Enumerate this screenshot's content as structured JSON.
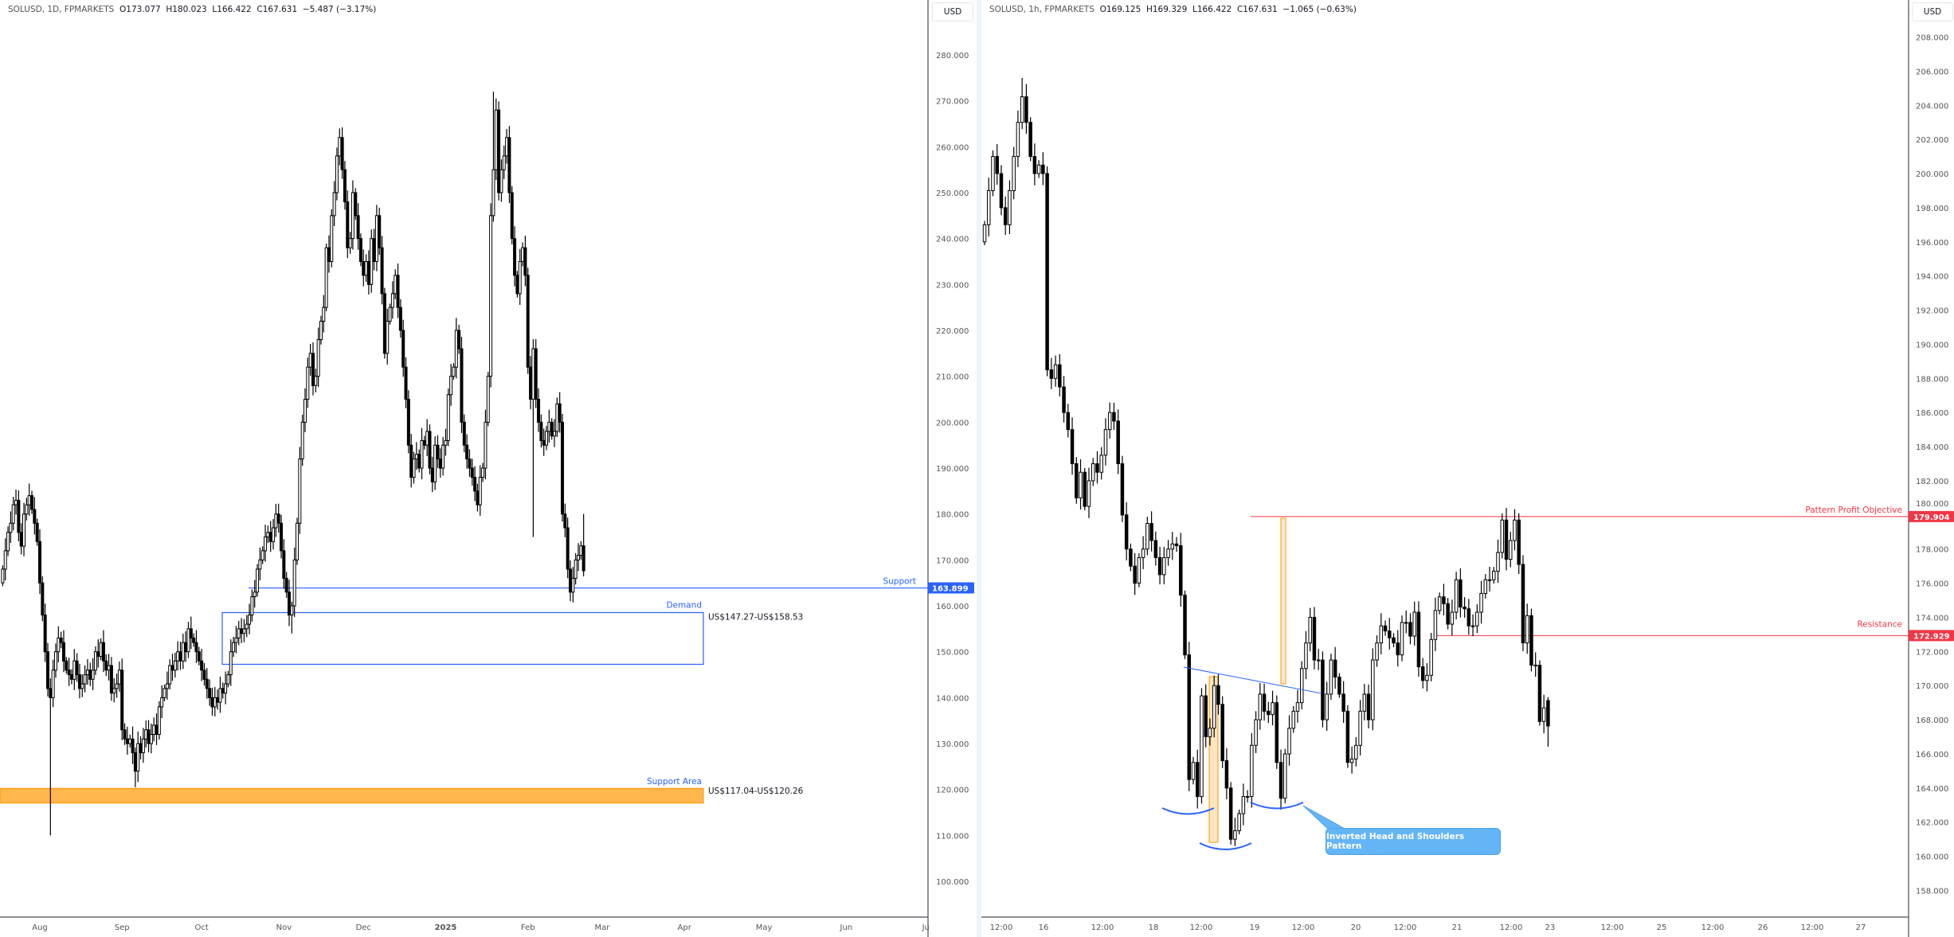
{
  "left_header": {
    "symbol": "SOLUSD, 1D, FPMARKETS",
    "open": "O173.077",
    "high": "H180.023",
    "low": "L166.422",
    "close": "C167.631",
    "change": "−5.487 (−3.17%)"
  },
  "right_header": {
    "symbol": "SOLUSD, 1h, FPMARKETS",
    "open": "O169.125",
    "high": "H169.329",
    "low": "L166.422",
    "close": "C167.631",
    "change": "−1.065 (−0.63%)"
  },
  "currency_label": "USD",
  "colors": {
    "up_body": "#ffffff",
    "down_body": "#000000",
    "support_blue": "#2962ff",
    "resistance_red": "#f23645",
    "support_area_orange": "#ffb74d",
    "callout_blue": "#64b5f6"
  },
  "chart_data": [
    {
      "type": "candlestick",
      "timeframe": "1D",
      "ylim": [
        95,
        285
      ],
      "y_ticks": [
        "100.000",
        "110.000",
        "120.000",
        "130.000",
        "140.000",
        "150.000",
        "160.000",
        "170.000",
        "180.000",
        "190.000",
        "200.000",
        "210.000",
        "220.000",
        "230.000",
        "240.000",
        "250.000",
        "260.000",
        "270.000",
        "280.000"
      ],
      "x_ticks": [
        "Aug",
        "Sep",
        "Oct",
        "Nov",
        "Dec",
        "2025",
        "Feb",
        "Mar",
        "Apr",
        "May",
        "Jun",
        "Ju"
      ],
      "closes": [
        168,
        172,
        176,
        178,
        182,
        183,
        176,
        173,
        180,
        182,
        184,
        181,
        178,
        174,
        165,
        158,
        150,
        142,
        140,
        146,
        150,
        153,
        152,
        148,
        146,
        145,
        144,
        148,
        145,
        142,
        143,
        145,
        146,
        144,
        146,
        150,
        149,
        152,
        148,
        146,
        147,
        141,
        142,
        143,
        146,
        133,
        131,
        130,
        131,
        128,
        124,
        130,
        128,
        131,
        133,
        130,
        132,
        134,
        132,
        138,
        140,
        142,
        143,
        147,
        146,
        148,
        150,
        148,
        152,
        150,
        155,
        153,
        152,
        150,
        148,
        146,
        144,
        142,
        140,
        138,
        140,
        139,
        142,
        141,
        143,
        145,
        150,
        152,
        153,
        155,
        154,
        155,
        156,
        158,
        162,
        163,
        168,
        170,
        172,
        175,
        176,
        174,
        177,
        180,
        178,
        172,
        166,
        163,
        158,
        160,
        170,
        178,
        192,
        200,
        205,
        212,
        215,
        208,
        210,
        218,
        222,
        225,
        238,
        235,
        245,
        250,
        258,
        262,
        255,
        248,
        238,
        240,
        250,
        245,
        240,
        235,
        232,
        235,
        230,
        240,
        235,
        245,
        238,
        228,
        215,
        222,
        225,
        228,
        232,
        225,
        220,
        212,
        205,
        195,
        188,
        192,
        193,
        190,
        196,
        195,
        198,
        190,
        187,
        195,
        192,
        190,
        195,
        196,
        206,
        210,
        212,
        220,
        216,
        200,
        195,
        192,
        190,
        188,
        185,
        182,
        188,
        190,
        200,
        210,
        245,
        255,
        268,
        250,
        255,
        258,
        262,
        250,
        240,
        232,
        228,
        235,
        238,
        232,
        212,
        205,
        216,
        205,
        200,
        196,
        195,
        198,
        200,
        197,
        198,
        204,
        200,
        180,
        177,
        168,
        163,
        166,
        170,
        171,
        173.077,
        167.631
      ],
      "first_open": 165,
      "extremes": [
        {
          "i": 18,
          "low": 110
        },
        {
          "i": 50,
          "low": 120.5
        },
        {
          "i": 109,
          "low": 154
        },
        {
          "i": 127,
          "high": 264
        },
        {
          "i": 185,
          "high": 272
        },
        {
          "i": 200,
          "low": 175
        },
        {
          "i": 214,
          "low": 161
        },
        {
          "i": 219,
          "high": 180.023,
          "low": 166.422
        }
      ],
      "last_price": "163.899",
      "annotations": {
        "support": {
          "label": "Support",
          "price": 163.899,
          "tag": "163.899"
        },
        "demand": {
          "label": "Demand",
          "low": 147.27,
          "high": 158.53,
          "range_text": "US$147.27-US$158.53"
        },
        "support_area": {
          "label": "Support Area",
          "low": 117.04,
          "high": 120.26,
          "range_text": "US$117.04-US$120.26"
        }
      }
    },
    {
      "type": "candlestick",
      "timeframe": "1h",
      "ylim": [
        157,
        209
      ],
      "y_ticks": [
        "158.000",
        "160.000",
        "162.000",
        "164.000",
        "166.000",
        "168.000",
        "170.000",
        "172.000",
        "174.000",
        "176.000",
        "178.000",
        "180.000",
        "182.000",
        "184.000",
        "186.000",
        "188.000",
        "190.000",
        "192.000",
        "194.000",
        "196.000",
        "198.000",
        "200.000",
        "202.000",
        "204.000",
        "206.000",
        "208.000"
      ],
      "x_ticks": [
        "12:00",
        "16",
        "12:00",
        "18",
        "12:00",
        "19",
        "12:00",
        "20",
        "12:00",
        "21",
        "12:00",
        "23",
        "12:00",
        "25",
        "12:00",
        "26",
        "12:00",
        "27"
      ],
      "closes": [
        197,
        199,
        201,
        200,
        198,
        197,
        199,
        201,
        203,
        204.5,
        203,
        201,
        200,
        200.5,
        200,
        188.5,
        188,
        188.8,
        187.5,
        186,
        185,
        183,
        181,
        182.5,
        180.5,
        182,
        183,
        182.5,
        183.5,
        185,
        186,
        185.5,
        183,
        180,
        178,
        177,
        176,
        177.5,
        178,
        179.5,
        178.5,
        177.5,
        176.5,
        177.5,
        178,
        178.3,
        178.2,
        175.3,
        171.8,
        164.5,
        165.5,
        163.5,
        169.4,
        167,
        167.5,
        170,
        168.9,
        165.6,
        164,
        161,
        161.5,
        162.5,
        163.5,
        163.5,
        166.5,
        168,
        169.5,
        168.5,
        168.3,
        169,
        165.5,
        163.4,
        166,
        167.5,
        168.5,
        169,
        171,
        172.5,
        174,
        171.5,
        171.5,
        168,
        169.5,
        171.5,
        170.5,
        169.5,
        168.5,
        165.5,
        165.7,
        166.5,
        168.5,
        169.5,
        168,
        171.5,
        172.5,
        173.5,
        173.2,
        172.8,
        172.5,
        171.8,
        173.7,
        173.7,
        172.9,
        174.3,
        171.1,
        170.3,
        170.6,
        172.7,
        174.4,
        175.2,
        174.8,
        173.6,
        174.3,
        176.2,
        174.6,
        174.5,
        173.5,
        173.5,
        174.3,
        175.4,
        176.2,
        176.2,
        176.7,
        177.8,
        179.7,
        177.4,
        178.5,
        179.7,
        177.1,
        172.5,
        174.1,
        171.2,
        171.2,
        167.9,
        168.7,
        167.631
      ],
      "first_open": 196,
      "extremes": [
        {
          "i": 9,
          "high": 205.6
        },
        {
          "i": 51,
          "low": 162.8
        },
        {
          "i": 60,
          "low": 160.6
        },
        {
          "i": 72,
          "low": 163.1
        },
        {
          "i": 128,
          "high": 180.1
        },
        {
          "i": 135,
          "high": 169.329,
          "low": 166.422,
          "open": 169.125
        }
      ],
      "annotations": {
        "objective": {
          "label": "Pattern Profit Objective",
          "price": 179.904,
          "tag": "179.904"
        },
        "resistance": {
          "label": "Resistance",
          "price": 172.929,
          "tag": "172.929"
        },
        "pattern": {
          "label": "Inverted Head and Shoulders Pattern"
        }
      }
    }
  ]
}
